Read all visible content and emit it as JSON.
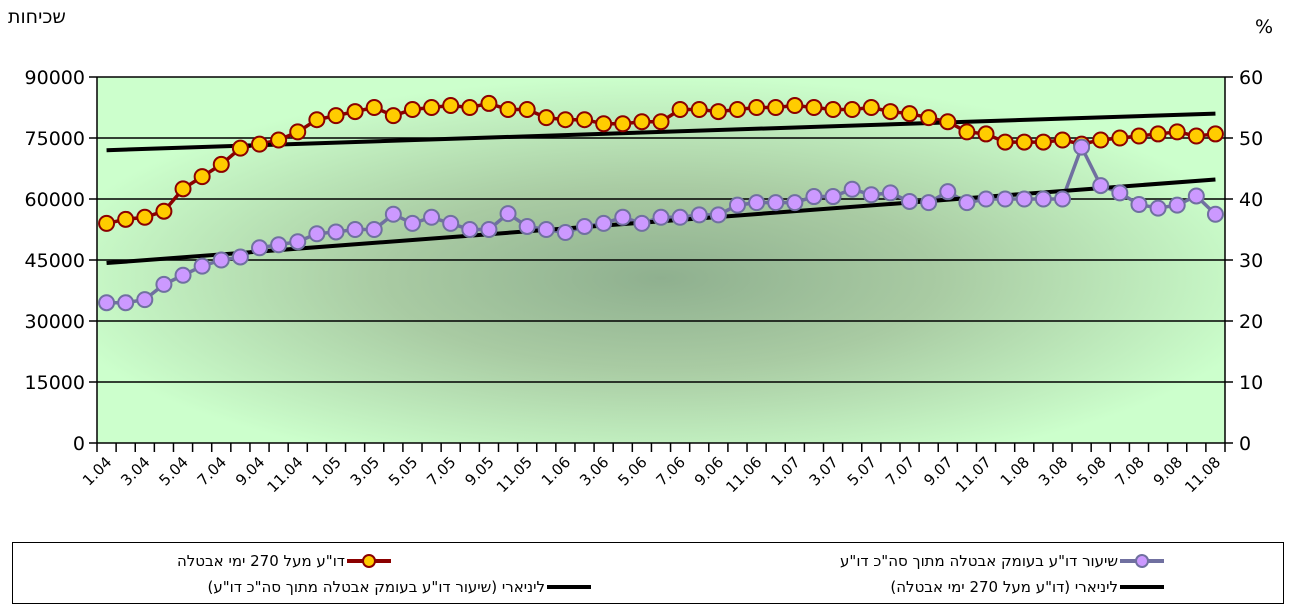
{
  "chart_data": {
    "type": "line",
    "left_axis_title": "שכיחות",
    "right_axis_title": "%",
    "left_ylim": [
      0,
      90000
    ],
    "left_ticks": [
      "0",
      "15000",
      "30000",
      "45000",
      "60000",
      "75000",
      "90000"
    ],
    "right_ylim": [
      0,
      60
    ],
    "right_ticks": [
      "0",
      "10",
      "20",
      "30",
      "40",
      "50",
      "60"
    ],
    "x_labels": [
      "1.04",
      "3.04",
      "5.04",
      "7.04",
      "9.04",
      "11.04",
      "1.05",
      "3.05",
      "5.05",
      "7.05",
      "9.05",
      "11.05",
      "1.06",
      "3.06",
      "5.06",
      "7.06",
      "9.06",
      "11.06",
      "1.07",
      "3.07",
      "5.07",
      "7.07",
      "9.07",
      "11.07",
      "1.08",
      "3.08",
      "5.08",
      "7.08",
      "9.08",
      "11.08"
    ],
    "grid": "horizontal",
    "legend_position": "bottom",
    "series": [
      {
        "name": "דו\"ע מעל 270 ימי אבטלה",
        "axis": "left",
        "color": "#8B0000",
        "marker_fill": "#FFCC00",
        "values": [
          54000,
          55000,
          55500,
          57000,
          62500,
          65500,
          68500,
          72500,
          73500,
          74500,
          76500,
          79500,
          80500,
          81500,
          82500,
          80500,
          82000,
          82500,
          83000,
          82500,
          83500,
          82000,
          82000,
          80000,
          79500,
          79500,
          78500,
          78500,
          79000,
          79000,
          82000,
          82000,
          81500,
          82000,
          82500,
          82500,
          83000,
          82500,
          82000,
          82000,
          82500,
          81500,
          81000,
          80000,
          79000,
          76500,
          76000,
          74000,
          74000,
          74000,
          74500,
          73500,
          74500,
          75000,
          75500,
          76000,
          76500,
          75500,
          76000
        ]
      },
      {
        "name": "שיעור דו\"ע בעומק אבטלה מתוך סה\"כ דו\"ע",
        "axis": "right",
        "color": "#7070A0",
        "marker_fill": "#CC99FF",
        "values": [
          23,
          23,
          23.5,
          26,
          27.5,
          29,
          30,
          30.5,
          32,
          32.5,
          33,
          34.3,
          34.6,
          35,
          35,
          37.5,
          36,
          37,
          36,
          35,
          35,
          37.6,
          35.5,
          35,
          34.5,
          35.5,
          36,
          37,
          36,
          37,
          37,
          37.4,
          37.4,
          39,
          39.4,
          39.4,
          39.4,
          40.4,
          40.4,
          41.6,
          40.7,
          41,
          39.6,
          39.4,
          41.2,
          39.4,
          40,
          40,
          40,
          40,
          40,
          48.5,
          42.2,
          41,
          39.1,
          38.5,
          39,
          40.5,
          37.5
        ]
      },
      {
        "name": "ליניארי (דו\"ע מעל 270 ימי אבטלה)",
        "axis": "left",
        "color": "#000000",
        "values": [
          72000,
          81000
        ]
      },
      {
        "name": "ליניארי (שיעור דו\"ע בעומק אבטלה מתוך סה\"כ דו\"ע)",
        "axis": "right",
        "color": "#000000",
        "values": [
          29.5,
          43.2
        ]
      }
    ]
  }
}
